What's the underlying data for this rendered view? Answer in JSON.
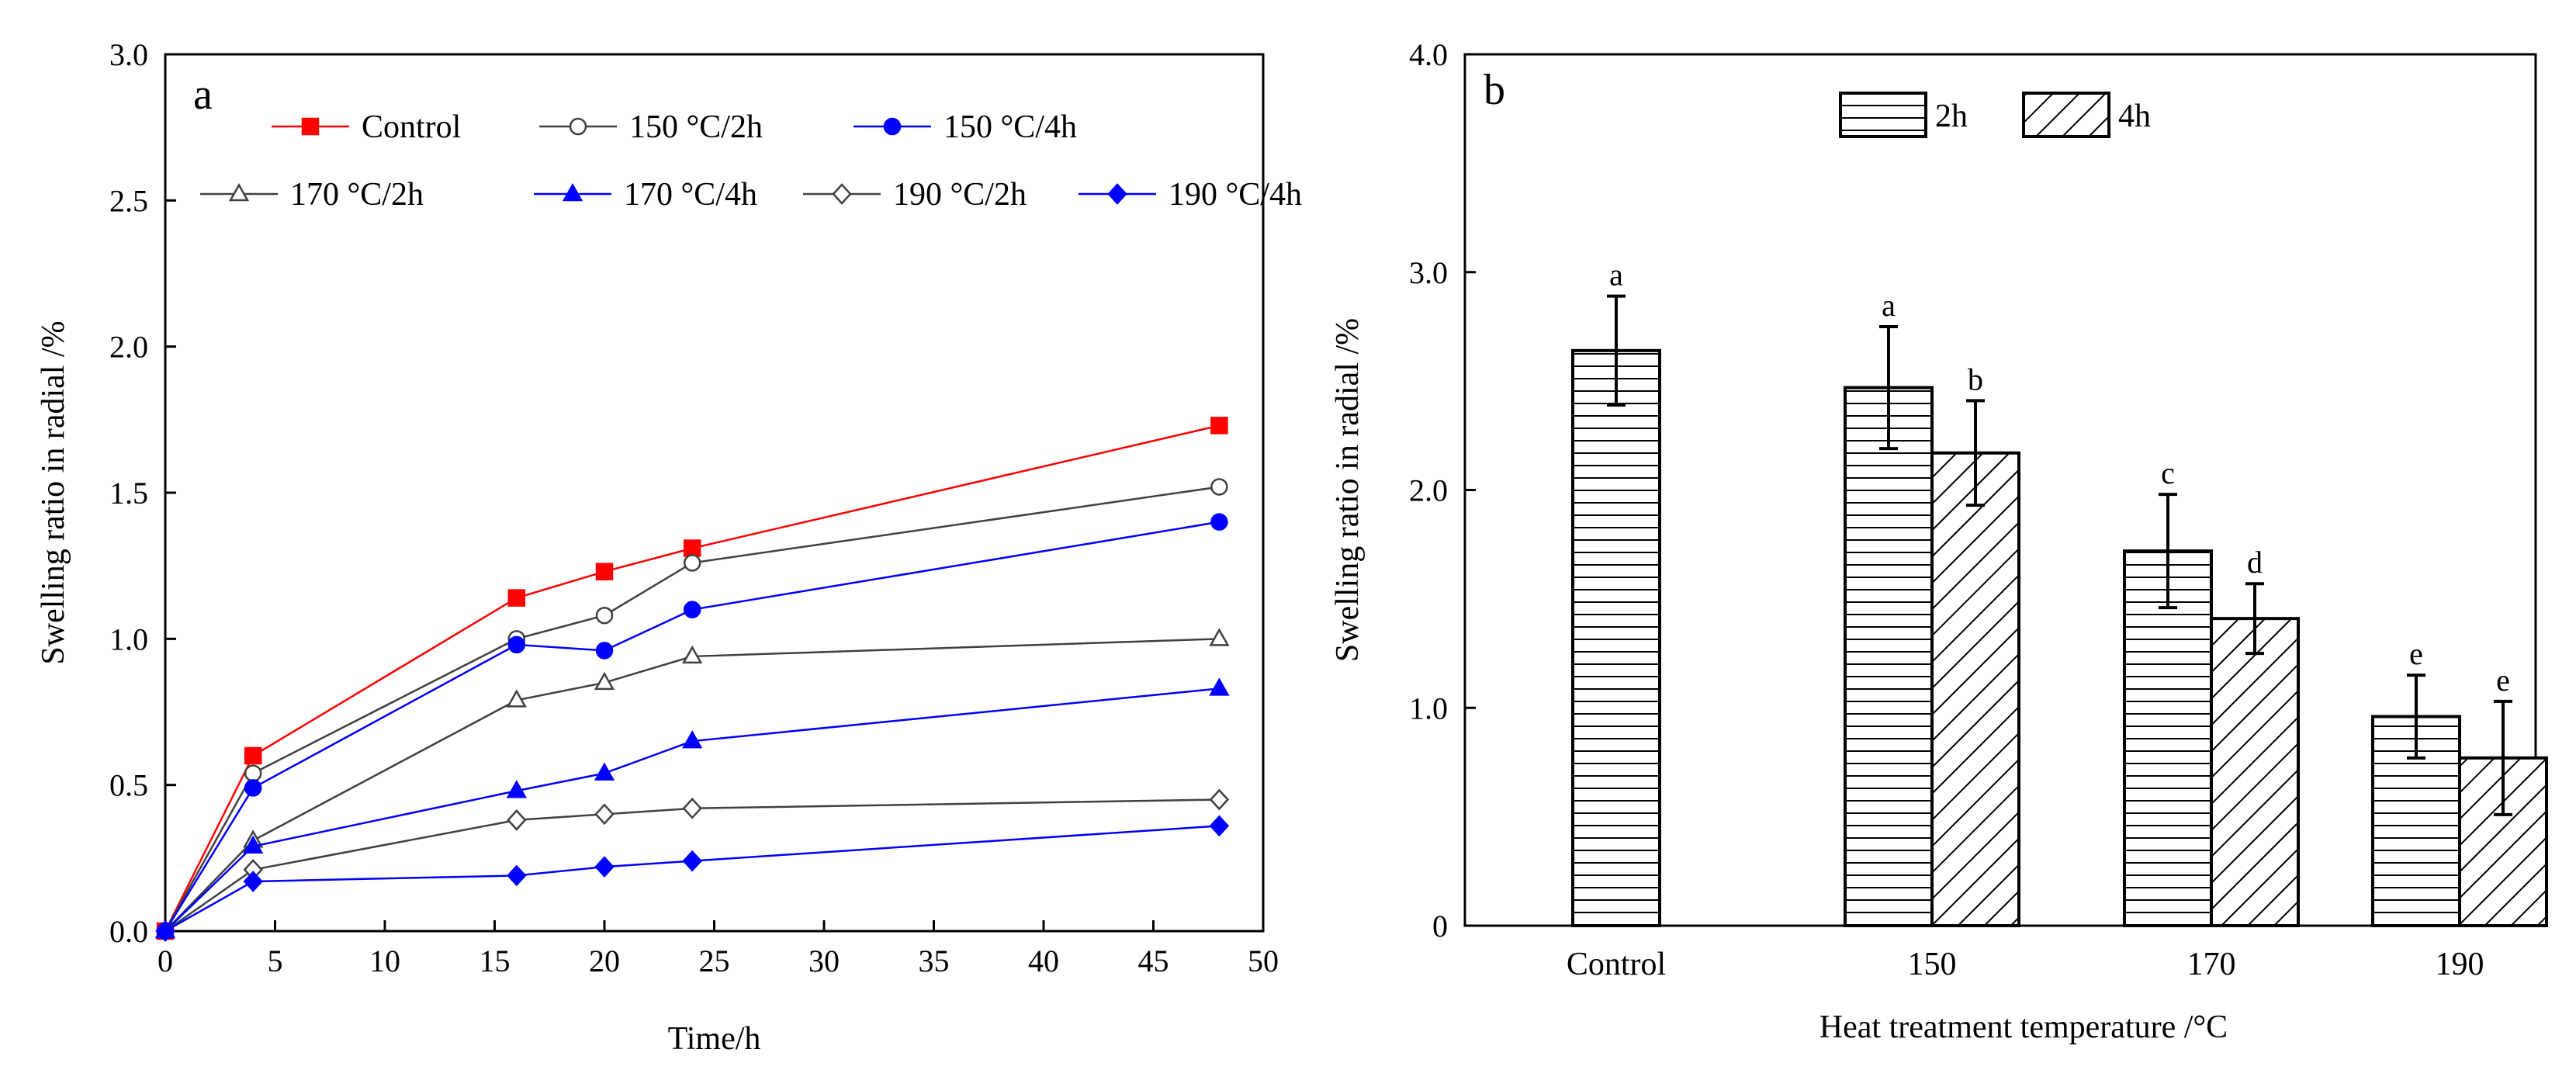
{
  "chart_data": [
    {
      "type": "line",
      "panel_label": "a",
      "xlabel": "Time/h",
      "ylabel": "Swelling ratio in radial /%",
      "xlim": [
        0,
        50
      ],
      "ylim": [
        0,
        3.0
      ],
      "x_ticks": [
        "0",
        "5",
        "10",
        "15",
        "20",
        "25",
        "30",
        "35",
        "40",
        "45",
        "50"
      ],
      "y_ticks": [
        "0.0",
        "0.5",
        "1.0",
        "1.5",
        "2.0",
        "2.5",
        "3.0"
      ],
      "grid": false,
      "legend_position": "top",
      "x": [
        0,
        4,
        16,
        20,
        24,
        48
      ],
      "series": [
        {
          "name": "Control",
          "color": "#ff0000",
          "marker": "square-filled",
          "values": [
            0,
            0.6,
            1.14,
            1.23,
            1.31,
            1.73
          ]
        },
        {
          "name": "150 °C/2h",
          "color": "#404040",
          "marker": "circle-open",
          "values": [
            0,
            0.54,
            1.0,
            1.08,
            1.26,
            1.52
          ]
        },
        {
          "name": "150 °C/4h",
          "color": "#0000ff",
          "marker": "circle-filled",
          "values": [
            0,
            0.49,
            0.98,
            0.96,
            1.1,
            1.4
          ]
        },
        {
          "name": "170 °C/2h",
          "color": "#404040",
          "marker": "triangle-open",
          "values": [
            0,
            0.31,
            0.79,
            0.85,
            0.94,
            1.0
          ]
        },
        {
          "name": "170 °C/4h",
          "color": "#0000ff",
          "marker": "triangle-filled",
          "values": [
            0,
            0.29,
            0.48,
            0.54,
            0.65,
            0.83
          ]
        },
        {
          "name": "190 °C/2h",
          "color": "#404040",
          "marker": "diamond-open",
          "values": [
            0,
            0.21,
            0.38,
            0.4,
            0.42,
            0.45
          ]
        },
        {
          "name": "190 °C/4h",
          "color": "#0000ff",
          "marker": "diamond-filled",
          "values": [
            0,
            0.17,
            0.19,
            0.22,
            0.24,
            0.36
          ]
        }
      ]
    },
    {
      "type": "bar",
      "panel_label": "b",
      "xlabel": "Heat treatment temperature /°C",
      "ylabel": "Swelling ratio in radial /%",
      "ylim": [
        0,
        4.0
      ],
      "y_ticks": [
        "0",
        "1.0",
        "2.0",
        "3.0",
        "4.0"
      ],
      "grid": false,
      "legend_position": "top",
      "categories": [
        "Control",
        "150",
        "170",
        "190"
      ],
      "series": [
        {
          "name": "2h",
          "pattern": "horizontal-lines",
          "values": [
            2.64,
            2.47,
            1.72,
            0.96
          ],
          "errors": [
            0.25,
            0.28,
            0.26,
            0.19
          ],
          "labels": [
            "a",
            "a",
            "c",
            "e"
          ]
        },
        {
          "name": "4h",
          "pattern": "diagonal-lines",
          "values": [
            null,
            2.17,
            1.41,
            0.77
          ],
          "errors": [
            null,
            0.24,
            0.16,
            0.26
          ],
          "labels": [
            "",
            "b",
            "d",
            "e"
          ]
        }
      ]
    }
  ]
}
